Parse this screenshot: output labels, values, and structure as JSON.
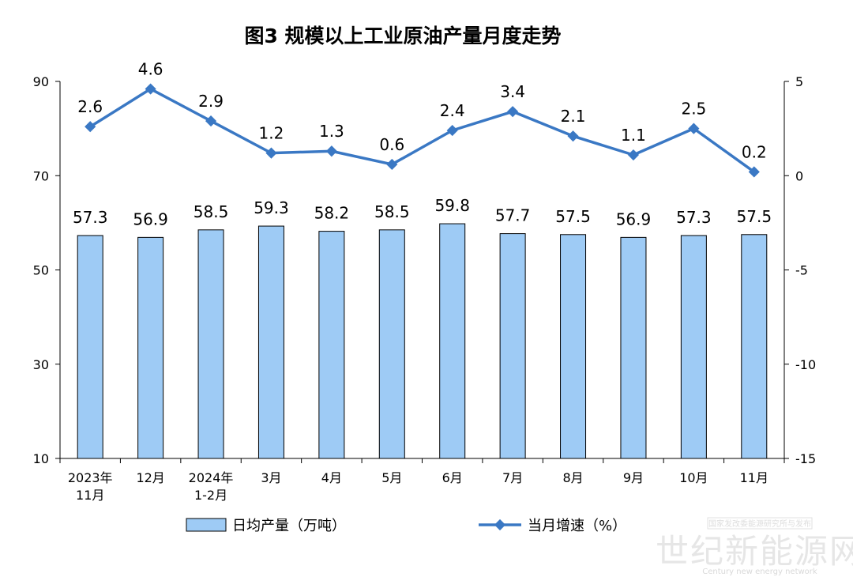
{
  "chart_data": {
    "type": "bar+line",
    "title": "图3  规模以上工业原油产量月度走势",
    "categories": [
      [
        "2023年",
        "11月"
      ],
      [
        "12月"
      ],
      [
        "2024年",
        "1-2月"
      ],
      [
        "3月"
      ],
      [
        "4月"
      ],
      [
        "5月"
      ],
      [
        "6月"
      ],
      [
        "7月"
      ],
      [
        "8月"
      ],
      [
        "9月"
      ],
      [
        "10月"
      ],
      [
        "11月"
      ]
    ],
    "left_axis": {
      "ylim": [
        10,
        90
      ],
      "ticks": [
        "10",
        "30",
        "50",
        "70",
        "90"
      ],
      "tick_values": [
        10,
        30,
        50,
        70,
        90
      ]
    },
    "right_axis": {
      "ylim": [
        -15,
        5
      ],
      "ticks": [
        "-15",
        "-10",
        "-5",
        "0",
        "5"
      ],
      "tick_values": [
        -15,
        -10,
        -5,
        0,
        5
      ]
    },
    "series": [
      {
        "name": "日均产量（万吨）",
        "type": "bar",
        "axis": "left",
        "color": "#9ecbf5",
        "values": [
          57.3,
          56.9,
          58.5,
          59.3,
          58.2,
          58.5,
          59.8,
          57.7,
          57.5,
          56.9,
          57.3,
          57.5
        ],
        "labels": [
          "57.3",
          "56.9",
          "58.5",
          "59.3",
          "58.2",
          "58.5",
          "59.8",
          "57.7",
          "57.5",
          "56.9",
          "57.3",
          "57.5"
        ]
      },
      {
        "name": "当月增速（%）",
        "type": "line",
        "axis": "right",
        "color": "#3a78c4",
        "values": [
          2.6,
          4.6,
          2.9,
          1.2,
          1.3,
          0.6,
          2.4,
          3.4,
          2.1,
          1.1,
          2.5,
          0.2
        ],
        "labels": [
          "2.6",
          "4.6",
          "2.9",
          "1.2",
          "1.3",
          "0.6",
          "2.4",
          "3.4",
          "2.1",
          "1.1",
          "2.5",
          "0.2"
        ]
      }
    ],
    "legend_position": "bottom",
    "grid": false
  },
  "watermark": {
    "top_text": "国家发改委能源研究所与发布",
    "main_text": "世纪新能源网",
    "sub_text": "Century new energy network"
  }
}
